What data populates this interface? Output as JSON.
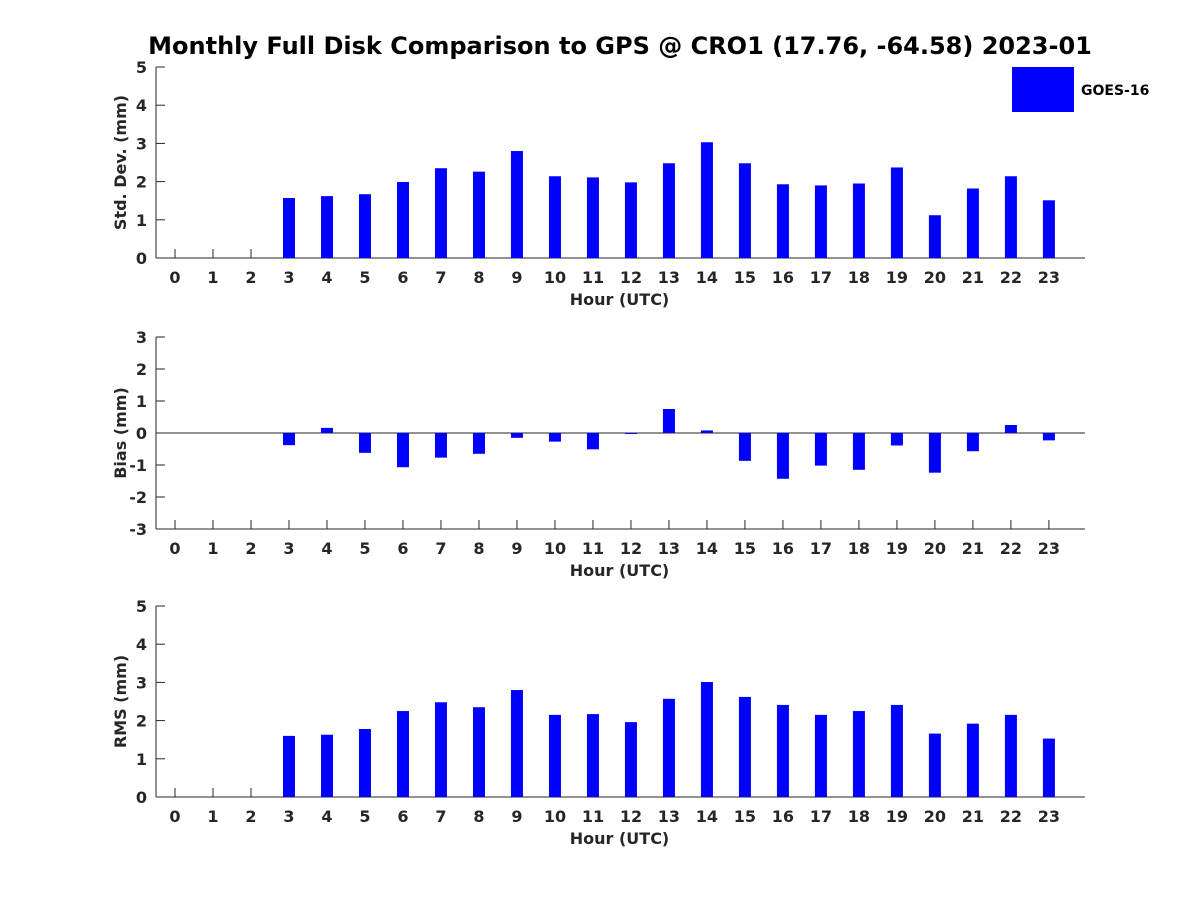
{
  "title": "Monthly Full Disk Comparison to GPS @ CRO1 (17.76, -64.58) 2023-01",
  "legend": {
    "label": "GOES-16",
    "color": "#0000ff",
    "placement": "top-right"
  },
  "chart_data": [
    {
      "type": "bar",
      "name": "std-dev",
      "xlabel": "Hour (UTC)",
      "ylabel": "Std. Dev. (mm)",
      "ylim": [
        0,
        5
      ],
      "yticks": [
        0,
        1,
        2,
        3,
        4,
        5
      ],
      "categories": [
        "0",
        "1",
        "2",
        "3",
        "4",
        "5",
        "6",
        "7",
        "8",
        "9",
        "10",
        "11",
        "12",
        "13",
        "14",
        "15",
        "16",
        "17",
        "18",
        "19",
        "20",
        "21",
        "22",
        "23"
      ],
      "series": [
        {
          "name": "GOES-16",
          "color": "#0000ff",
          "values": [
            0,
            0,
            0,
            1.57,
            1.62,
            1.67,
            1.99,
            2.35,
            2.26,
            2.8,
            2.14,
            2.11,
            1.98,
            2.48,
            3.03,
            2.48,
            1.93,
            1.9,
            1.95,
            2.37,
            1.12,
            1.82,
            2.14,
            1.51
          ]
        }
      ]
    },
    {
      "type": "bar",
      "name": "bias",
      "xlabel": "Hour (UTC)",
      "ylabel": "Bias (mm)",
      "ylim": [
        -3,
        3
      ],
      "yticks": [
        -3,
        -2,
        -1,
        0,
        1,
        2,
        3
      ],
      "categories": [
        "0",
        "1",
        "2",
        "3",
        "4",
        "5",
        "6",
        "7",
        "8",
        "9",
        "10",
        "11",
        "12",
        "13",
        "14",
        "15",
        "16",
        "17",
        "18",
        "19",
        "20",
        "21",
        "22",
        "23"
      ],
      "series": [
        {
          "name": "GOES-16",
          "color": "#0000ff",
          "values": [
            0,
            0,
            0,
            -0.38,
            0.16,
            -0.62,
            -1.07,
            -0.77,
            -0.65,
            -0.15,
            -0.27,
            -0.51,
            -0.03,
            0.75,
            0.08,
            -0.87,
            -1.43,
            -1.02,
            -1.15,
            -0.39,
            -1.24,
            -0.57,
            0.25,
            -0.23
          ]
        }
      ]
    },
    {
      "type": "bar",
      "name": "rms",
      "xlabel": "Hour (UTC)",
      "ylabel": "RMS (mm)",
      "ylim": [
        0,
        5
      ],
      "yticks": [
        0,
        1,
        2,
        3,
        4,
        5
      ],
      "categories": [
        "0",
        "1",
        "2",
        "3",
        "4",
        "5",
        "6",
        "7",
        "8",
        "9",
        "10",
        "11",
        "12",
        "13",
        "14",
        "15",
        "16",
        "17",
        "18",
        "19",
        "20",
        "21",
        "22",
        "23"
      ],
      "series": [
        {
          "name": "GOES-16",
          "color": "#0000ff",
          "values": [
            0,
            0,
            0,
            1.6,
            1.63,
            1.78,
            2.25,
            2.48,
            2.35,
            2.8,
            2.15,
            2.17,
            1.96,
            2.57,
            3.01,
            2.62,
            2.41,
            2.15,
            2.25,
            2.41,
            1.66,
            1.92,
            2.15,
            1.53
          ]
        }
      ]
    }
  ]
}
